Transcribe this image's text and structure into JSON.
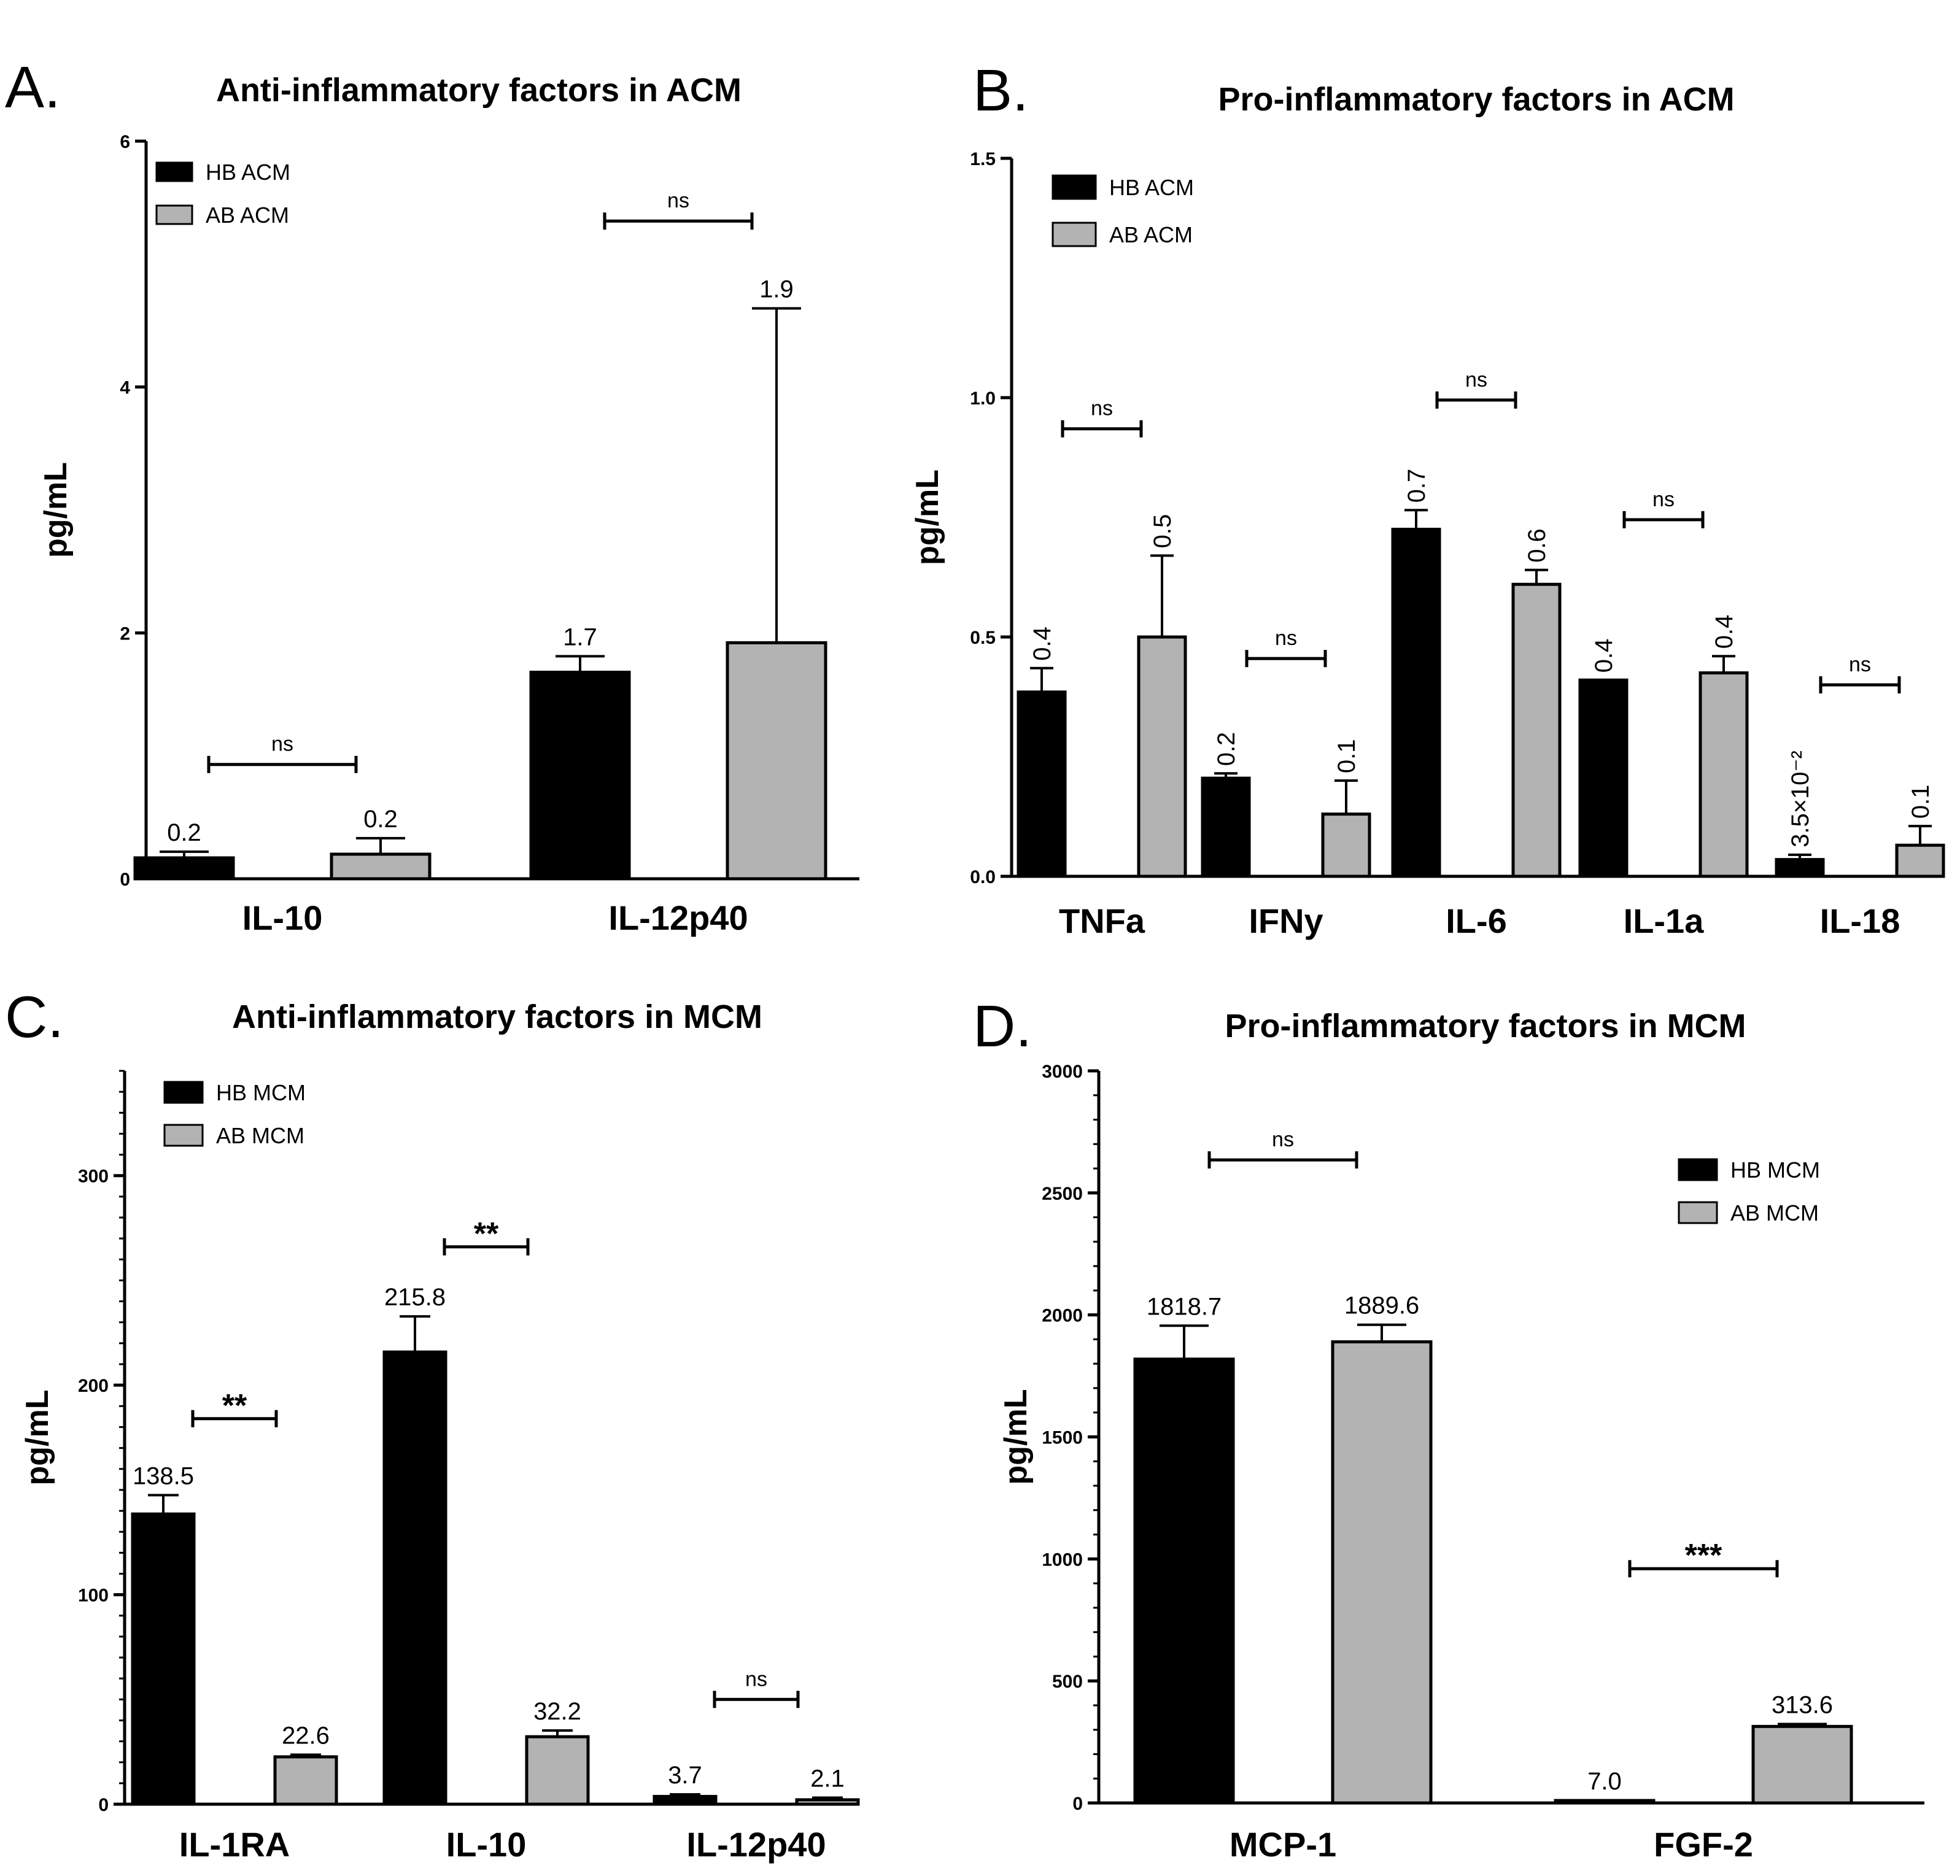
{
  "colors": {
    "hb": "#000000",
    "ab": "#b3b3b3"
  },
  "chart_data": [
    {
      "panel": "A.",
      "type": "bar",
      "title": "Anti-inflammatory factors in ACM",
      "ylabel": "pg/mL",
      "xlabel": "",
      "ylim": [
        0,
        6
      ],
      "yticks": [
        0,
        2,
        4,
        6
      ],
      "ytick_labels": [
        "0",
        "2",
        "4",
        "6"
      ],
      "minor_ticks": false,
      "categories": [
        "IL-10",
        "IL-12p40"
      ],
      "legend_position": "top-left",
      "series": [
        {
          "name": "HB ACM",
          "color": "hb",
          "values": [
            0.17,
            1.68
          ],
          "errors": [
            0.05,
            0.13
          ],
          "labels": [
            "0.2",
            "1.7"
          ]
        },
        {
          "name": "AB ACM",
          "color": "ab",
          "values": [
            0.2,
            1.92
          ],
          "errors": [
            0.13,
            2.72
          ],
          "labels": [
            "0.2",
            "1.9"
          ]
        }
      ],
      "significance": [
        {
          "category": 0,
          "text": "ns",
          "y": 0.93
        },
        {
          "category": 1,
          "text": "ns",
          "y": 5.35
        }
      ],
      "label_rotation": 0
    },
    {
      "panel": "B.",
      "type": "bar",
      "title": "Pro-inflammatory factors in ACM",
      "ylabel": "pg/mL",
      "xlabel": "",
      "ylim": [
        0,
        1.5
      ],
      "yticks": [
        0,
        0.5,
        1.0,
        1.5
      ],
      "ytick_labels": [
        "0.0",
        "0.5",
        "1.0",
        "1.5"
      ],
      "minor_ticks": false,
      "categories": [
        "TNFa",
        "IFNy",
        "IL-6",
        "IL-1a",
        "IL-18"
      ],
      "legend_position": "top-left",
      "series": [
        {
          "name": "HB ACM",
          "color": "hb",
          "values": [
            0.385,
            0.205,
            0.725,
            0.41,
            0.035
          ],
          "errors": [
            0.05,
            0.01,
            0.04,
            0.0,
            0.01
          ],
          "labels": [
            "0.4",
            "0.2",
            "0.7",
            "0.4",
            "3.5×10⁻²"
          ]
        },
        {
          "name": "AB ACM",
          "color": "ab",
          "values": [
            0.5,
            0.13,
            0.61,
            0.425,
            0.065
          ],
          "errors": [
            0.17,
            0.07,
            0.03,
            0.035,
            0.04
          ],
          "labels": [
            "0.5",
            "0.1",
            "0.6",
            "0.4",
            "0.1"
          ]
        }
      ],
      "significance": [
        {
          "category": 0,
          "text": "ns",
          "y": 0.935
        },
        {
          "category": 1,
          "text": "ns",
          "y": 0.455
        },
        {
          "category": 2,
          "text": "ns",
          "y": 0.995
        },
        {
          "category": 3,
          "text": "ns",
          "y": 0.745
        },
        {
          "category": 4,
          "text": "ns",
          "y": 0.4
        }
      ],
      "label_rotation": -90
    },
    {
      "panel": "C.",
      "type": "bar",
      "title": "Anti-inflammatory factors in MCM",
      "ylabel": "pg/mL",
      "xlabel": "",
      "ylim": [
        0,
        350
      ],
      "yticks": [
        0,
        100,
        200,
        300
      ],
      "ytick_labels": [
        "0",
        "100",
        "200",
        "300"
      ],
      "minor_ticks": true,
      "minor_step": 10,
      "categories": [
        "IL-1RA",
        "IL-10",
        "IL-12p40"
      ],
      "legend_position": "top-left",
      "series": [
        {
          "name": "HB MCM",
          "color": "hb",
          "values": [
            138.5,
            215.8,
            3.7
          ],
          "errors": [
            9,
            17,
            1
          ],
          "labels": [
            "138.5",
            "215.8",
            "3.7"
          ]
        },
        {
          "name": "AB MCM",
          "color": "ab",
          "values": [
            22.6,
            32.2,
            2.1
          ],
          "errors": [
            1,
            3,
            1
          ],
          "labels": [
            "22.6",
            "32.2",
            "2.1"
          ]
        }
      ],
      "significance": [
        {
          "category": 0,
          "text": "**",
          "y": 184
        },
        {
          "category": 1,
          "text": "**",
          "y": 266
        },
        {
          "category": 2,
          "text": "ns",
          "y": 50
        }
      ],
      "label_rotation": 0
    },
    {
      "panel": "D.",
      "type": "bar",
      "title": "Pro-inflammatory factors in MCM",
      "ylabel": "pg/mL",
      "xlabel": "",
      "ylim": [
        0,
        3000
      ],
      "yticks": [
        0,
        500,
        1000,
        1500,
        2000,
        2500,
        3000
      ],
      "ytick_labels": [
        "0",
        "500",
        "1000",
        "1500",
        "2000",
        "2500",
        "3000"
      ],
      "minor_ticks": true,
      "minor_step": 100,
      "categories": [
        "MCP-1",
        "FGF-2"
      ],
      "legend_position": "top-right",
      "series": [
        {
          "name": "HB MCM",
          "color": "hb",
          "values": [
            1818.7,
            7.0
          ],
          "errors": [
            137,
            3
          ],
          "labels": [
            "1818.7",
            "7.0"
          ]
        },
        {
          "name": "AB MCM",
          "color": "ab",
          "values": [
            1889.6,
            313.6
          ],
          "errors": [
            70,
            10
          ],
          "labels": [
            "1889.6",
            "313.6"
          ]
        }
      ],
      "significance": [
        {
          "category": 0,
          "text": "ns",
          "y": 2635
        },
        {
          "category": 1,
          "text": "***",
          "y": 960
        }
      ],
      "label_rotation": 0
    }
  ]
}
